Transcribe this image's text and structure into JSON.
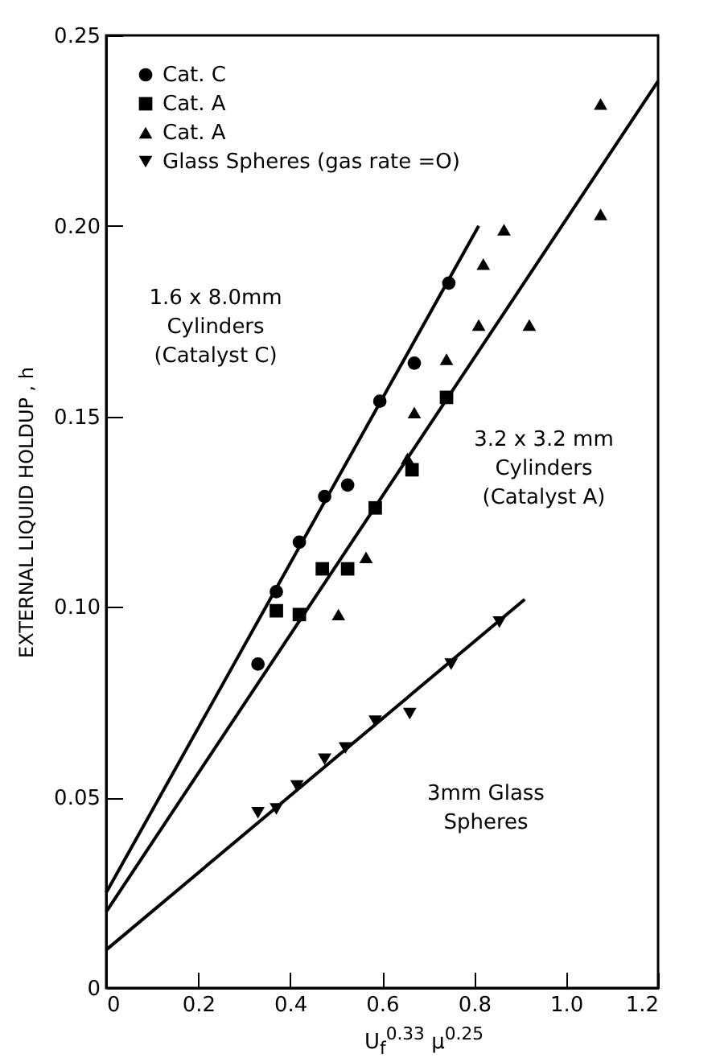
{
  "chart_data": {
    "type": "scatter",
    "xlabel": "U$_{f}$$^{0.33}$ μ$^{0.25}$",
    "ylabel": "EXTERNAL LIQUID HOLDUP , h",
    "xlim": [
      0,
      1.2
    ],
    "xticks": [
      0,
      0.2,
      0.4,
      0.6,
      0.8,
      {
        "value": 1,
        "label": "1.0"
      },
      1.2
    ],
    "ylim": [
      0,
      0.25
    ],
    "yticks": [
      0,
      0.05,
      {
        "value": 0.1,
        "label": "0.10"
      },
      0.15,
      {
        "value": 0.2,
        "label": "0.20"
      },
      0.25
    ],
    "legend": "top left",
    "grid": false,
    "series": [
      {
        "name": "Cat. C",
        "type": "scatter",
        "marker": "circle",
        "color": "#000000",
        "x": [
          0.33,
          0.37,
          0.42,
          0.475,
          0.525,
          0.595,
          0.67,
          0.745
        ],
        "values": [
          0.085,
          0.104,
          0.117,
          0.129,
          0.132,
          0.154,
          0.164,
          0.185
        ]
      },
      {
        "name": "Cat. A",
        "type": "scatter",
        "marker": "square",
        "color": "#000000",
        "x": [
          0.37,
          0.42,
          0.47,
          0.525,
          0.585,
          0.665,
          0.74
        ],
        "values": [
          0.099,
          0.098,
          0.11,
          0.11,
          0.126,
          0.136,
          0.155
        ]
      },
      {
        "name": "Cat. A",
        "type": "scatter",
        "marker": "triangle",
        "color": "#000000",
        "x": [
          0.505,
          0.565,
          0.655,
          0.67,
          0.74,
          0.81,
          0.82,
          0.865,
          0.92,
          1.075,
          1.075
        ],
        "values": [
          0.098,
          0.113,
          0.139,
          0.151,
          0.165,
          0.174,
          0.19,
          0.199,
          0.174,
          0.203,
          0.232
        ]
      },
      {
        "name": "Glass Spheres (gas rate =O)",
        "type": "scatter",
        "marker": "triangle-down",
        "color": "#000000",
        "x": [
          0.33,
          0.37,
          0.415,
          0.475,
          0.52,
          0.585,
          0.66,
          0.75,
          0.855
        ],
        "values": [
          0.046,
          0.047,
          0.053,
          0.06,
          0.063,
          0.07,
          0.072,
          0.085,
          0.096
        ]
      },
      {
        "type": "line",
        "color": "#000000",
        "x": [
          0,
          0.81
        ],
        "values": [
          0.025,
          0.2
        ]
      },
      {
        "type": "line",
        "color": "#000000",
        "x": [
          0,
          1.2
        ],
        "values": [
          0.02,
          0.238
        ]
      },
      {
        "type": "line",
        "color": "#000000",
        "x": [
          0,
          0.91
        ],
        "values": [
          0.01,
          0.102
        ]
      }
    ],
    "annotations": [
      "1.6 x 8.0mm\nCylinders\n(Catalyst C)",
      "3.2 x 3.2 mm\nCylinders\n(Catalyst A)",
      "3mm Glass\nSpheres"
    ]
  }
}
